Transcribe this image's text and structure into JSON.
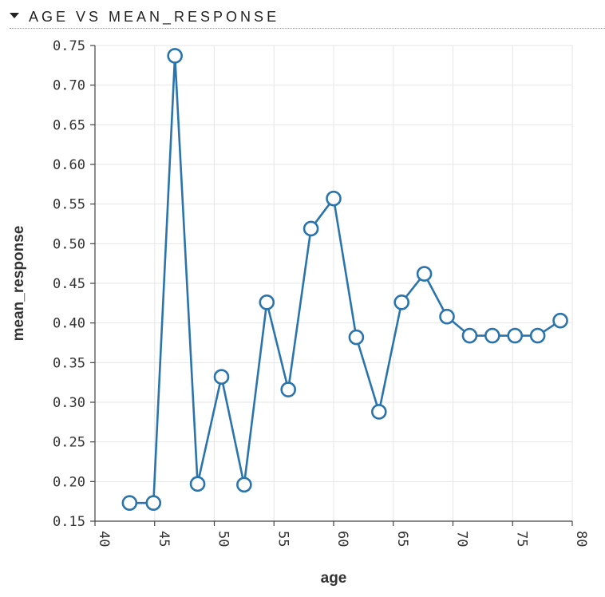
{
  "header": {
    "title": "AGE VS MEAN_RESPONSE",
    "toggle_icon": "caret-down-icon"
  },
  "chart_data": {
    "type": "line",
    "xlabel": "age",
    "ylabel": "mean_response",
    "xlim": [
      40,
      80
    ],
    "ylim": [
      0.15,
      0.75
    ],
    "xticks": [
      40,
      45,
      50,
      55,
      60,
      65,
      70,
      75,
      80
    ],
    "yticks": [
      0.15,
      0.2,
      0.25,
      0.3,
      0.35,
      0.4,
      0.45,
      0.5,
      0.55,
      0.6,
      0.65,
      0.7,
      0.75
    ],
    "grid": true,
    "color": "#2a74ad",
    "x": [
      42.9,
      44.9,
      46.7,
      48.6,
      50.6,
      52.5,
      54.4,
      56.2,
      58.1,
      60.0,
      61.9,
      63.8,
      65.7,
      67.6,
      69.5,
      71.4,
      73.3,
      75.2,
      77.1,
      79.0
    ],
    "y": [
      0.173,
      0.173,
      0.737,
      0.197,
      0.332,
      0.196,
      0.426,
      0.316,
      0.519,
      0.557,
      0.382,
      0.288,
      0.426,
      0.462,
      0.408,
      0.384,
      0.384,
      0.384,
      0.384,
      0.403
    ]
  }
}
